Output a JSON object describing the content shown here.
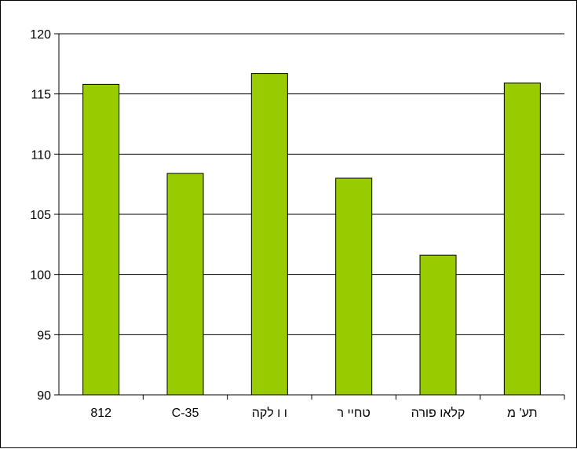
{
  "chart_data": {
    "type": "bar",
    "title": "",
    "xlabel": "",
    "ylabel": "",
    "categories": [
      "812",
      "C-35",
      "ו ו לקה",
      "טחיי ר",
      "קלאו פורה",
      "תע' מ"
    ],
    "values": [
      115.8,
      108.4,
      116.7,
      108.0,
      101.6,
      115.9
    ],
    "ylim": [
      90,
      120
    ],
    "yticks": [
      90,
      95,
      100,
      105,
      110,
      115,
      120
    ],
    "ytick_labels": [
      "90",
      "95",
      "100",
      "105",
      "110",
      "115",
      "120"
    ],
    "grid": true,
    "legend": "none",
    "colors": {
      "bar_fill": "#99cc00",
      "bar_stroke": "#000000",
      "grid": "#000000",
      "axis": "#000000",
      "background": "#ffffff"
    }
  }
}
